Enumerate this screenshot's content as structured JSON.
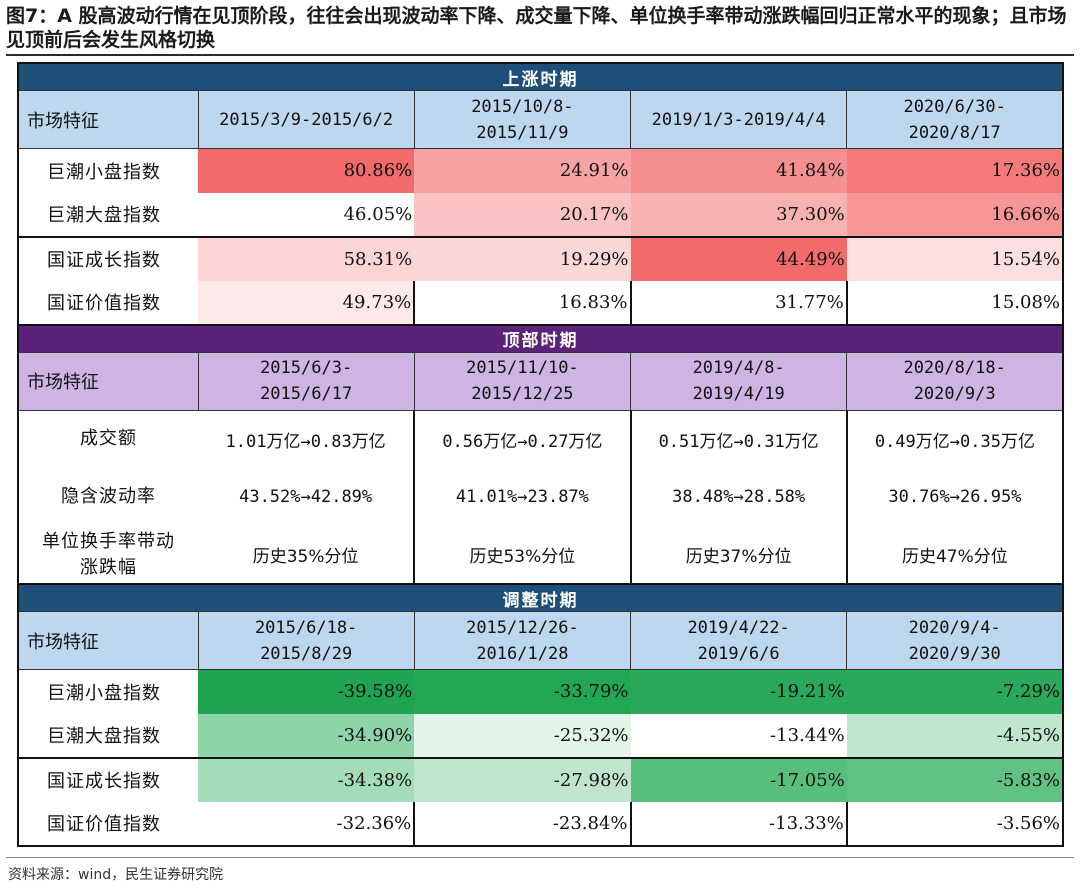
{
  "title": "图7：A 股高波动行情在见顶阶段，往往会出现波动率下降、成交量下降、单位换手率带动涨跌幅回归正常水平的现象；且市场见顶前后会发生风格切换",
  "source": "资料来源：wind，民生证券研究院",
  "colors": {
    "rise_header": "#1f4e79",
    "top_header": "#5b2277",
    "adjust_header": "#1f4e79",
    "rise_date_bg": "#bdd7ee",
    "top_date_bg": "#cdb4e3",
    "adjust_date_bg": "#bdd7ee"
  },
  "rise": {
    "section_title": "上涨时期",
    "header_label": "市场特征",
    "periods": [
      "2015/3/9-2015/6/2",
      "2015/10/8-\n2015/11/9",
      "2019/1/3-2019/4/4",
      "2020/6/30-\n2020/8/17"
    ],
    "rows": [
      {
        "label": "巨潮小盘指数",
        "values": [
          "80.86%",
          "24.91%",
          "41.84%",
          "17.36%"
        ],
        "bg": [
          "#f26b6b",
          "#f7a3a3",
          "#f59090",
          "#f47979"
        ]
      },
      {
        "label": "巨潮大盘指数",
        "values": [
          "46.05%",
          "20.17%",
          "37.30%",
          "16.66%"
        ],
        "bg": [
          "#ffffff",
          "#f9c3c3",
          "#f8b1b1",
          "#f69696"
        ]
      },
      {
        "label": "国证成长指数",
        "values": [
          "58.31%",
          "19.29%",
          "44.49%",
          "15.54%"
        ],
        "bg": [
          "#fbd5d5",
          "#fbd8d8",
          "#f26b6b",
          "#fbdede"
        ]
      },
      {
        "label": "国证价值指数",
        "values": [
          "49.73%",
          "16.83%",
          "31.77%",
          "15.08%"
        ],
        "bg": [
          "#fde9e9",
          "#ffffff",
          "#ffffff",
          "#ffffff"
        ]
      }
    ]
  },
  "top": {
    "section_title": "顶部时期",
    "header_label": "市场特征",
    "periods": [
      "2015/6/3-\n2015/6/17",
      "2015/11/10-\n2015/12/25",
      "2019/4/8-\n2019/4/19",
      "2020/8/18-\n2020/9/3"
    ],
    "rows": [
      {
        "label": "成交额",
        "values": [
          "1.01万亿→0.83万亿",
          "0.56万亿→0.27万亿",
          "0.51万亿→0.31万亿",
          "0.49万亿→0.35万亿"
        ]
      },
      {
        "label": "隐含波动率",
        "values": [
          "43.52%→42.89%",
          "41.01%→23.87%",
          "38.48%→28.58%",
          "30.76%→26.95%"
        ]
      },
      {
        "label": "单位换手率带动涨跌幅",
        "values": [
          "历史35%分位",
          "历史53%分位",
          "历史37%分位",
          "历史47%分位"
        ]
      }
    ]
  },
  "adjust": {
    "section_title": "调整时期",
    "header_label": "市场特征",
    "periods": [
      "2015/6/18-\n2015/8/29",
      "2015/12/26-\n2016/1/28",
      "2019/4/22-\n2019/6/6",
      "2020/9/4-\n2020/9/30"
    ],
    "rows": [
      {
        "label": "巨潮小盘指数",
        "values": [
          "-39.58%",
          "-33.79%",
          "-19.21%",
          "-7.29%"
        ],
        "bg": [
          "#1fa552",
          "#22a753",
          "#2aa95a",
          "#2aa95a"
        ]
      },
      {
        "label": "巨潮大盘指数",
        "values": [
          "-34.90%",
          "-25.32%",
          "-13.44%",
          "-4.55%"
        ],
        "bg": [
          "#8fd4a9",
          "#e3f4e9",
          "#ffffff",
          "#bfe7cd"
        ]
      },
      {
        "label": "国证成长指数",
        "values": [
          "-34.38%",
          "-27.98%",
          "-17.05%",
          "-5.83%"
        ],
        "bg": [
          "#a4dcb8",
          "#bfe6cc",
          "#58be7d",
          "#5fc183"
        ]
      },
      {
        "label": "国证价值指数",
        "values": [
          "-32.36%",
          "-23.84%",
          "-13.33%",
          "-3.56%"
        ],
        "bg": [
          "#ffffff",
          "#ffffff",
          "#ffffff",
          "#ffffff"
        ]
      }
    ]
  }
}
